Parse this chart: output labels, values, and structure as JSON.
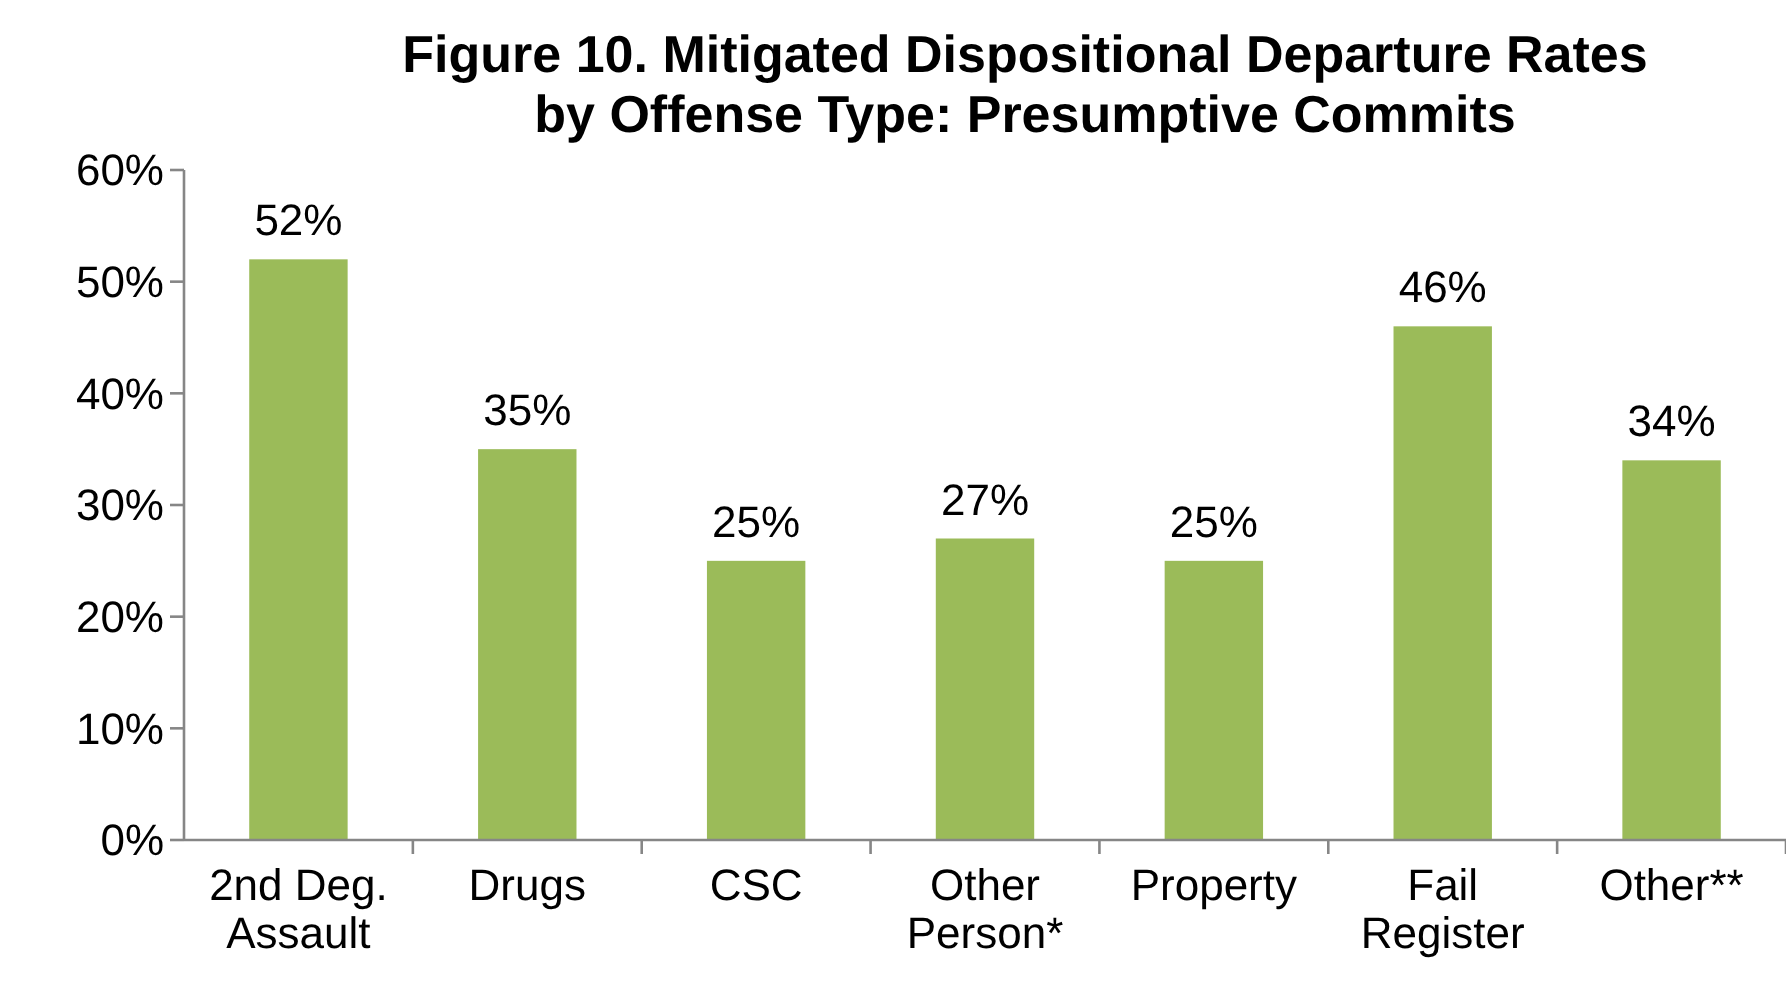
{
  "chart_data": {
    "type": "bar",
    "title": "Figure 10. Mitigated Dispositional Departure Rates by Offense Type: Presumptive Commits",
    "categories": [
      "2nd Deg. Assault",
      "Drugs",
      "CSC",
      "Other Person*",
      "Property",
      "Fail Register",
      "Other**"
    ],
    "values": [
      52,
      35,
      25,
      27,
      25,
      46,
      34
    ],
    "value_labels": [
      "52%",
      "35%",
      "25%",
      "27%",
      "25%",
      "46%",
      "34%"
    ],
    "color": "#9bbb59",
    "ylim": [
      0,
      60
    ],
    "yticks": [
      {
        "value": 0,
        "label": "0%"
      },
      {
        "value": 10,
        "label": "10%"
      },
      {
        "value": 20,
        "label": "20%"
      },
      {
        "value": 30,
        "label": "30%"
      },
      {
        "value": 40,
        "label": "40%"
      },
      {
        "value": 50,
        "label": "50%"
      },
      {
        "value": 60,
        "label": "60%"
      }
    ],
    "grid": false
  }
}
